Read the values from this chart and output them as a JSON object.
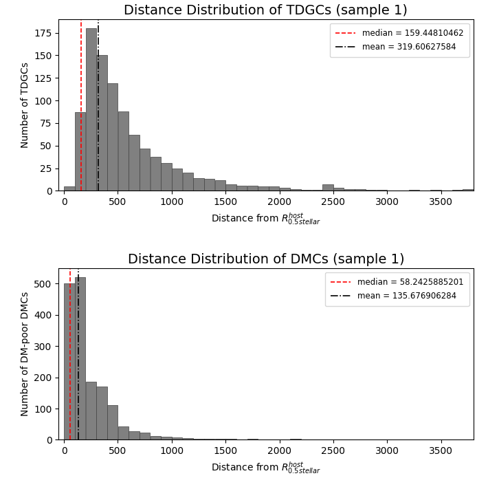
{
  "plot1": {
    "title": "Distance Distribution of TDGCs (sample 1)",
    "ylabel": "Number of TDGCs",
    "xlabel": "Distance from $R_{0.5stellar}^{host}$",
    "median": 159.44810462,
    "mean": 319.60627584,
    "median_label": "median = 159.44810462",
    "mean_label": "mean = 319.60627584",
    "bar_color": "#808080",
    "bar_edgecolor": "#404040",
    "xlim": [
      -50,
      3800
    ],
    "ylim": [
      0,
      190
    ],
    "yticks": [
      0,
      25,
      50,
      75,
      100,
      125,
      150,
      175
    ],
    "xticks": [
      0,
      500,
      1000,
      1500,
      2000,
      2500,
      3000,
      3500
    ],
    "bin_width": 100,
    "bar_heights": [
      5,
      87,
      180,
      150,
      119,
      88,
      62,
      47,
      38,
      31,
      25,
      20,
      14,
      13,
      12,
      7,
      6,
      6,
      5,
      5,
      3,
      2,
      1,
      1,
      7,
      3,
      2,
      2,
      1,
      1,
      0,
      0,
      1,
      0,
      1,
      0,
      1,
      2
    ]
  },
  "plot2": {
    "title": "Distance Distribution of DMCs (sample 1)",
    "ylabel": "Number of DM-poor DMCs",
    "xlabel": "Distance from $R_{0.5stellar}^{host}$",
    "median": 58.2425885201,
    "mean": 135.676906284,
    "median_label": "median = 58.2425885201",
    "mean_label": "mean = 135.676906284",
    "bar_color": "#808080",
    "bar_edgecolor": "#404040",
    "xlim": [
      -50,
      3800
    ],
    "ylim": [
      0,
      550
    ],
    "yticks": [
      0,
      100,
      200,
      300,
      400,
      500
    ],
    "xticks": [
      0,
      500,
      1000,
      1500,
      2000,
      2500,
      3000,
      3500
    ],
    "bin_width": 100,
    "bar_heights": [
      500,
      520,
      185,
      170,
      110,
      43,
      28,
      22,
      12,
      9,
      7,
      6,
      4,
      3,
      3,
      2,
      1,
      2,
      1,
      1,
      1,
      2,
      0,
      0,
      0,
      0,
      0,
      0,
      0,
      0,
      0,
      0,
      0,
      0,
      0,
      0,
      0,
      1
    ]
  },
  "figsize": [
    7.1,
    6.95
  ],
  "dpi": 100
}
